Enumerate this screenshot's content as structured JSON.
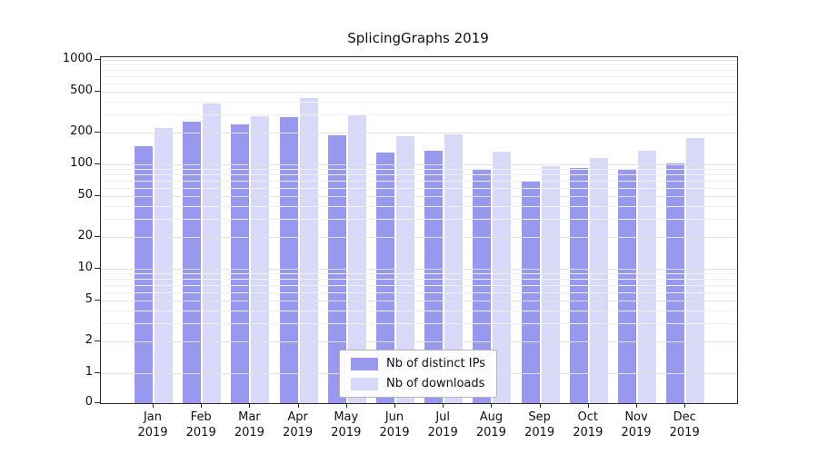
{
  "chart_data": {
    "type": "bar",
    "title": "SplicingGraphs 2019",
    "xlabel": "",
    "ylabel": "",
    "scale": "log-with-zero-baseline",
    "grid": true,
    "legend_position": "bottom-center-inside",
    "yticks": [
      0,
      1,
      2,
      5,
      10,
      20,
      50,
      100,
      200,
      500,
      1000
    ],
    "ylim": [
      0,
      1000
    ],
    "categories": [
      "Jan",
      "Feb",
      "Mar",
      "Apr",
      "May",
      "Jun",
      "Jul",
      "Aug",
      "Sep",
      "Oct",
      "Nov",
      "Dec"
    ],
    "year_label": "2019",
    "series": [
      {
        "name": "Nb of distinct IPs",
        "color": "#9898ee",
        "values": [
          150,
          255,
          240,
          285,
          190,
          130,
          135,
          90,
          70,
          92,
          88,
          103
        ]
      },
      {
        "name": "Nb of downloads",
        "color": "#d8d8f8",
        "values": [
          225,
          380,
          290,
          430,
          300,
          185,
          195,
          132,
          96,
          115,
          135,
          180
        ]
      }
    ]
  }
}
